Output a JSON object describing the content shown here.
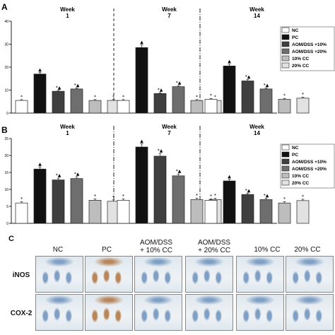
{
  "panels": {
    "a_label": "A",
    "b_label": "B",
    "c_label": "C"
  },
  "legend_entries": [
    "NC",
    "PC",
    "AOM/DSS +10%",
    "AOM/DSS +20%",
    "10% CC",
    "20% CC"
  ],
  "colors": {
    "NC": "#ffffff",
    "PC": "#111111",
    "AOM10": "#3f3f3f",
    "AOM20": "#6e6e6e",
    "CC10": "#bdbdbd",
    "CC20": "#e2e2e2",
    "tissue_bg": "#dfe8ef",
    "tissue_stain_blue": "#7f9fc4",
    "tissue_stain_brown": "#b8865a"
  },
  "chart_data": [
    {
      "type": "bar",
      "panel": "A",
      "groups": [
        {
          "label": "Week\n1",
          "values": [
            5.5,
            17,
            9.5,
            10.5,
            5.5,
            5.5
          ],
          "marks": [
            "*",
            "▲",
            "*▲",
            "*▲",
            "*",
            "*"
          ]
        },
        {
          "label": "Week\n7",
          "values": [
            5.5,
            28.5,
            8.5,
            11.5,
            5.5,
            5.5
          ],
          "marks": [
            "*",
            "▲",
            "*▲",
            "*▲",
            "*",
            "*"
          ]
        },
        {
          "label": "Week\n14",
          "values": [
            6,
            20.5,
            14,
            10.5,
            6,
            6.5
          ],
          "marks": [
            "*",
            "▲",
            "*▲",
            "*▲",
            "*",
            "*"
          ]
        }
      ],
      "ylim": [
        0,
        40
      ],
      "ytick_labels": [
        "0",
        "10",
        "20",
        "30",
        "40"
      ],
      "separators": [
        "dash",
        "dashdot"
      ],
      "grid": false
    },
    {
      "type": "bar",
      "panel": "B",
      "groups": [
        {
          "label": "Week\n1",
          "values": [
            6,
            16,
            12.8,
            13.2,
            6.8,
            6.5
          ],
          "marks": [
            "*",
            "▲",
            "*▲",
            "*▲",
            "*",
            "*"
          ]
        },
        {
          "label": "Week\n7",
          "values": [
            6.8,
            22.5,
            19.8,
            14,
            7,
            7
          ],
          "marks": [
            "*",
            "▲",
            "*▲",
            "*▲",
            "*",
            "*"
          ]
        },
        {
          "label": "Week\n14",
          "values": [
            6.8,
            12.5,
            8.5,
            7,
            6,
            6.7
          ],
          "marks": [
            "*",
            "▲",
            "*▲",
            "*▲",
            "*",
            "*"
          ]
        }
      ],
      "ylim": [
        0,
        25
      ],
      "ytick_labels": [
        "0",
        "5",
        "10",
        "15",
        "20",
        "25"
      ],
      "separators": [
        "dashdot",
        "dashdot"
      ],
      "grid": false
    }
  ],
  "micrographs": {
    "columns": [
      "NC",
      "PC",
      "AOM/DSS\n+ 10% CC",
      "AOM/DSS\n+ 20% CC",
      "10% CC",
      "20% CC"
    ],
    "rows": [
      "iNOS",
      "COX-2"
    ],
    "stain": [
      [
        "blue",
        "brown",
        "blue",
        "blue",
        "blue",
        "blue"
      ],
      [
        "blue",
        "brown",
        "blue",
        "blue",
        "blue",
        "blue"
      ]
    ]
  }
}
